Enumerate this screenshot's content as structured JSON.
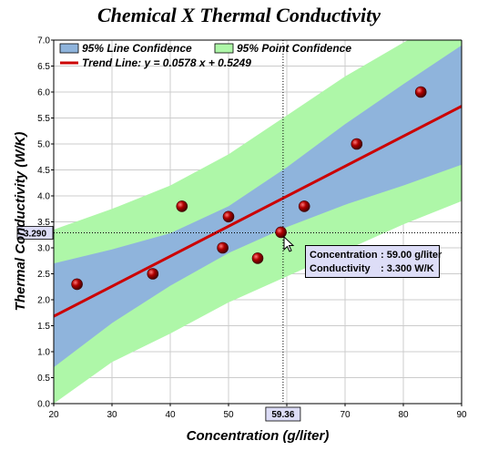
{
  "chart_data": {
    "type": "scatter",
    "title": "Chemical X Thermal Conductivity",
    "xlabel": "Concentration (g/liter)",
    "ylabel": "Thermal Conductivity (W/K)",
    "xlim": [
      20,
      90
    ],
    "ylim": [
      0,
      7
    ],
    "xticks": [
      "20",
      "30",
      "40",
      "50",
      "60",
      "70",
      "80",
      "90"
    ],
    "yticks": [
      "0.0",
      "0.5",
      "1.0",
      "1.5",
      "2.0",
      "2.5",
      "3.0",
      "3.5",
      "4.0",
      "4.5",
      "5.0",
      "5.5",
      "6.0",
      "6.5",
      "7.0"
    ],
    "grid": true,
    "legend_position": "top-left",
    "legend": {
      "line_confidence": "95% Line Confidence",
      "point_confidence": "95% Point Confidence",
      "trend_line": "Trend Line: y = 0.0578 x + 0.5249"
    },
    "points": [
      {
        "x": 24,
        "y": 2.3
      },
      {
        "x": 37,
        "y": 2.5
      },
      {
        "x": 42,
        "y": 3.8
      },
      {
        "x": 49,
        "y": 3.0
      },
      {
        "x": 50,
        "y": 3.6
      },
      {
        "x": 55,
        "y": 2.8
      },
      {
        "x": 59,
        "y": 3.3
      },
      {
        "x": 63,
        "y": 3.8
      },
      {
        "x": 72,
        "y": 5.0
      },
      {
        "x": 83,
        "y": 6.0
      }
    ],
    "trend": {
      "slope": 0.0578,
      "intercept": 0.5249
    },
    "line_confidence_band": {
      "x": [
        20,
        30,
        40,
        50,
        60,
        70,
        80,
        90
      ],
      "upper": [
        2.7,
        2.97,
        3.28,
        3.8,
        4.55,
        5.38,
        6.15,
        6.9
      ],
      "lower": [
        0.7,
        1.55,
        2.27,
        2.9,
        3.4,
        3.83,
        4.2,
        4.6
      ]
    },
    "point_confidence_band": {
      "x": [
        20,
        30,
        40,
        50,
        60,
        70,
        80,
        90
      ],
      "upper": [
        3.35,
        3.75,
        4.2,
        4.8,
        5.55,
        6.3,
        6.95,
        7.55
      ],
      "lower": [
        0.0,
        0.8,
        1.35,
        1.95,
        2.45,
        2.95,
        3.45,
        3.9
      ]
    },
    "crosshair": {
      "x_label": "59.36",
      "y_label": "3.290"
    },
    "tooltip": {
      "x_label": "Concentration",
      "x_value": ": 59.00 g/liter",
      "y_label": "Conductivity",
      "y_value": ": 3.300 W/K"
    },
    "colors": {
      "line_band": "#8fb4dc",
      "point_band": "#aef7a8",
      "trend": "#cc0000",
      "marker": "#990000",
      "tooltip_bg": "#ddddf7"
    }
  }
}
